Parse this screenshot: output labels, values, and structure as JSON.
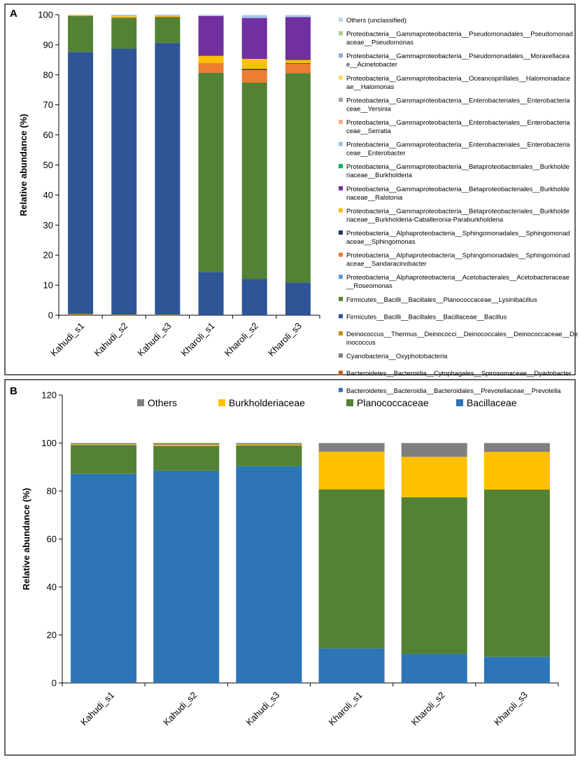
{
  "chart_data": [
    {
      "panel": "A",
      "type": "bar",
      "stacked": true,
      "ylabel": "Relative abundance (%)",
      "xlabel": "",
      "ylim": [
        0,
        100
      ],
      "yticks": [
        0,
        10,
        20,
        30,
        40,
        50,
        60,
        70,
        80,
        90,
        100
      ],
      "categories": [
        "Kahudi_s1",
        "Kahudi_s2",
        "Kahudi_s3",
        "Kharoli_s1",
        "Kharoli_s2",
        "Kharoli_s3"
      ],
      "series": [
        {
          "name": "Bacteroidetes__Bacteroidia__Bacteroidales__Prevotellaceae__Prevotella",
          "color": "#2e75b6",
          "values": [
            0,
            0,
            0,
            0,
            0,
            0
          ]
        },
        {
          "name": "Bacteroidetes__Bacteroidia__Cytophagales__Spirosomaceae__Dyadobacter",
          "color": "#c55a11",
          "values": [
            0.2,
            0.1,
            0.1,
            0,
            0,
            0
          ]
        },
        {
          "name": "Cyanobacteria__Oxyphotobacteria",
          "color": "#7f7f7f",
          "values": [
            0,
            0,
            0,
            0,
            0,
            0
          ]
        },
        {
          "name": "Deinococcus__Thermus__Deinococci__Deinococcales__Deinococcaceae__Deinococcus",
          "color": "#bf9000",
          "values": [
            0.2,
            0.1,
            0.1,
            0,
            0,
            0
          ]
        },
        {
          "name": "Firmicutes__Bacilli__Bacillales__Bacillaceae__Bacillus",
          "color": "#2f5597",
          "values": [
            87.2,
            88.5,
            90.4,
            14.4,
            12.1,
            10.9
          ]
        },
        {
          "name": "Firmicutes__Bacilli__Bacillales__Planococcaceae__Lysinibacillus",
          "color": "#548235",
          "values": [
            12.0,
            10.3,
            8.6,
            66.3,
            65.3,
            69.7
          ]
        },
        {
          "name": "Proteobacteria__Alphaproteobacteria__Acetobacterales__Acetobacteraceae__Roseomonas",
          "color": "#5b9bd5",
          "values": [
            0,
            0,
            0,
            0,
            0,
            0
          ]
        },
        {
          "name": "Proteobacteria__Alphaproteobacteria__Sphingomonadales__Sphingomonadaceae__Sandaracinobacter",
          "color": "#ed7d31",
          "values": [
            0.1,
            0.1,
            0.1,
            3.2,
            4.2,
            3.1
          ]
        },
        {
          "name": "Proteobacteria__Alphaproteobacteria__Sphingomonadales__Sphingomonadaceae__Sphingomonas",
          "color": "#203864",
          "values": [
            0,
            0,
            0,
            0,
            0.4,
            0.2
          ]
        },
        {
          "name": "Proteobacteria__Gammaproteobacteria__Betaproteobacteriales__Burkholderiaceae__Burkholderia-Caballeronia-Paraburkholderia",
          "color": "#ffc000",
          "values": [
            0.2,
            0.4,
            0.3,
            2.4,
            3.3,
            1.0
          ]
        },
        {
          "name": "Proteobacteria__Gammaproteobacteria__Betaproteobacteriales__Burkholderiaceae__Ralstonia",
          "color": "#7030a0",
          "values": [
            0,
            0,
            0,
            13.3,
            13.6,
            14.3
          ]
        },
        {
          "name": "Proteobacteria__Gammaproteobacteria__Betaproteobacteriales__Burkholderiaceae__Burkholderia",
          "color": "#00b050",
          "values": [
            0,
            0,
            0,
            0,
            0,
            0
          ]
        },
        {
          "name": "Proteobacteria__Gammaproteobacteria__Enterobacteriales__Enterobacteriaceae__Enterobacter",
          "color": "#9dc3e6",
          "values": [
            0,
            0.3,
            0.1,
            0,
            0.5,
            0.3
          ]
        },
        {
          "name": "Proteobacteria__Gammaproteobacteria__Enterobacteriales__Enterobacteriaceae__Serratia",
          "color": "#f4b183",
          "values": [
            0,
            0,
            0,
            0,
            0,
            0
          ]
        },
        {
          "name": "Proteobacteria__Gammaproteobacteria__Enterobacteriales__Enterobacteriaceae__Yersinia",
          "color": "#a5a5a5",
          "values": [
            0,
            0,
            0,
            0,
            0,
            0
          ]
        },
        {
          "name": "Proteobacteria__Gammaproteobacteria__Oceanospirillales__Halomonadaceae__Halomonas",
          "color": "#ffd966",
          "values": [
            0,
            0,
            0,
            0,
            0,
            0
          ]
        },
        {
          "name": "Proteobacteria__Gammaproteobacteria__Pseudomonadales__Moraxellaceae__Acinetobacter",
          "color": "#8faadc",
          "values": [
            0,
            0.1,
            0.1,
            0,
            0.1,
            0
          ]
        },
        {
          "name": "Proteobacteria__Gammaproteobacteria__Pseudomonadales__Pseudomonadaceae__Pseudomonas",
          "color": "#a9d18e",
          "values": [
            0,
            0,
            0,
            0,
            0,
            0
          ]
        },
        {
          "name": "Others (unclassified)",
          "color": "#bdd7ee",
          "values": [
            0.1,
            0.1,
            0.3,
            0.4,
            0.5,
            0.5
          ]
        }
      ],
      "legend_display": [
        {
          "lines": [
            "Others (unclassified)"
          ],
          "color": "#bdd7ee"
        },
        {
          "lines": [
            "Proteobacteria__Gammaproteobacteria__Pseudomonadales__Pseudomonad",
            "aceae__Pseudomonas"
          ],
          "color": "#a9d18e"
        },
        {
          "lines": [
            "Proteobacteria__Gammaproteobacteria__Pseudomonadales__Moraxellacea",
            "e__Acinetobacter"
          ],
          "color": "#8faadc"
        },
        {
          "lines": [
            "Proteobacteria__Gammaproteobacteria__Oceanospirillales__Halomonadace",
            "ae__Halomonas"
          ],
          "color": "#ffd966"
        },
        {
          "lines": [
            "Proteobacteria__Gammaproteobacteria__Enterobacteriales__Enterobacteria",
            "ceae__Yersinia"
          ],
          "color": "#a5a5a5"
        },
        {
          "lines": [
            "Proteobacteria__Gammaproteobacteria__Enterobacteriales__Enterobacteria",
            "ceae__Serratia"
          ],
          "color": "#f4b183"
        },
        {
          "lines": [
            "Proteobacteria__Gammaproteobacteria__Enterobacteriales__Enterobacteria",
            "ceae__Enterobacter"
          ],
          "color": "#9dc3e6"
        },
        {
          "lines": [
            "Proteobacteria__Gammaproteobacteria__Betaproteobacteriales__Burkholde",
            "riaceae__Burkholderia"
          ],
          "color": "#00b050"
        },
        {
          "lines": [
            "Proteobacteria__Gammaproteobacteria__Betaproteobacteriales__Burkholde",
            "riaceae__Ralstonia"
          ],
          "color": "#7030a0"
        },
        {
          "lines": [
            "Proteobacteria__Gammaproteobacteria__Betaproteobacteriales__Burkholde",
            "riaceae__Burkholderia-Caballeronia-Paraburkholderia"
          ],
          "color": "#ffc000"
        },
        {
          "lines": [
            "Proteobacteria__Alphaproteobacteria__Sphingomonadales__Sphingomonad",
            "aceae__Sphingomonas"
          ],
          "color": "#203864"
        },
        {
          "lines": [
            "Proteobacteria__Alphaproteobacteria__Sphingomonadales__Sphingomonad",
            "aceae__Sandaracinobacter"
          ],
          "color": "#ed7d31"
        },
        {
          "lines": [
            "Proteobacteria__Alphaproteobacteria__Acetobacterales__Acetobacteraceae",
            "__Roseomonas"
          ],
          "color": "#5b9bd5"
        },
        {
          "lines": [
            "Firmicutes__Bacilli__Bacillales__Planococcaceae__Lysinibacillus"
          ],
          "color": "#548235"
        },
        {
          "lines": [
            "Firmicutes__Bacilli__Bacillales__Bacillaceae__Bacillus"
          ],
          "color": "#2f5597"
        },
        {
          "lines": [
            "Deinococcus__Thermus__Deinococci__Deinococcales__Deinococcaceae__De",
            "inococcus"
          ],
          "color": "#bf9000"
        },
        {
          "lines": [
            "Cyanobacteria__Oxyphotobacteria"
          ],
          "color": "#7f7f7f"
        },
        {
          "lines": [
            "Bacteroidetes__Bacteroidia__Cytophagales__Spirosomaceae__Dyadobacter"
          ],
          "color": "#c55a11"
        },
        {
          "lines": [
            "Bacteroidetes__Bacteroidia__Bacteroidales__Prevotellaceae__Prevotella"
          ],
          "color": "#2e75b6"
        }
      ]
    },
    {
      "panel": "B",
      "type": "bar",
      "stacked": true,
      "ylabel": "Relative abundance (%)",
      "xlabel": "",
      "ylim": [
        0,
        120
      ],
      "yticks": [
        0,
        20,
        40,
        60,
        80,
        100,
        120
      ],
      "categories": [
        "Kahudi_s1",
        "Kahudi_s2",
        "Kahudi_s3",
        "Kharoli_s1",
        "Kharoli_s2",
        "Kharoli_s3"
      ],
      "legend_position": "top",
      "series": [
        {
          "name": "Bacillaceae",
          "color": "#2e75b6",
          "values": [
            87.2,
            88.5,
            90.4,
            14.4,
            12.1,
            10.9
          ]
        },
        {
          "name": "Planococcaceae",
          "color": "#548235",
          "values": [
            12.0,
            10.3,
            8.6,
            66.3,
            65.3,
            69.7
          ]
        },
        {
          "name": "Burkholderiaceae",
          "color": "#ffc000",
          "values": [
            0.3,
            0.5,
            0.4,
            15.7,
            16.9,
            15.7
          ]
        },
        {
          "name": "Others",
          "color": "#7f7f7f",
          "values": [
            0.5,
            0.7,
            0.6,
            3.6,
            5.7,
            3.7
          ]
        }
      ],
      "legend_order": [
        "Others",
        "Burkholderiaceae",
        "Planococcaceae",
        "Bacillaceae"
      ]
    }
  ]
}
